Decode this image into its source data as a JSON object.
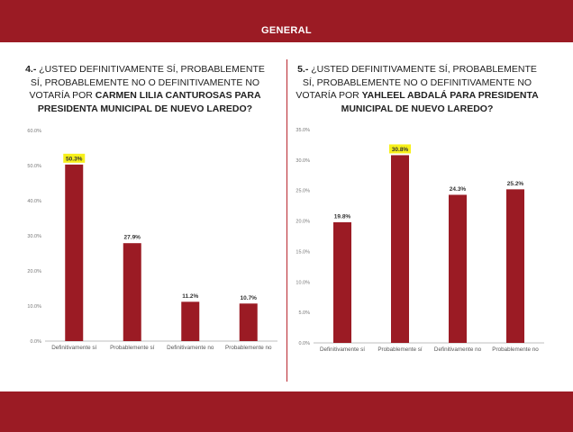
{
  "header": {
    "title": "GENERAL"
  },
  "questions": [
    {
      "num": "4.-",
      "text_pre": " ¿USTED DEFINITIVAMENTE SÍ, PROBABLEMENTE SÍ, PROBABLEMENTE NO O DEFINITIVAMENTE NO VOTARÍA POR ",
      "bold": "CARMEN LILIA CANTUROSAS PARA PRESIDENTA MUNICIPAL DE NUEVO LAREDO?"
    },
    {
      "num": "5.-",
      "text_pre": " ¿USTED DEFINITIVAMENTE SÍ, PROBABLEMENTE SÍ, PROBABLEMENTE NO O DEFINITIVAMENTE NO VOTARÍA POR ",
      "bold": "YAHLEEL ABDALÁ PARA PRESIDENTA MUNICIPAL DE NUEVO LAREDO?"
    }
  ],
  "colors": {
    "bar": "#9b1b24",
    "highlight": "#f7f01a"
  },
  "chart_data": [
    {
      "type": "bar",
      "categories": [
        "Definitivamente sí",
        "Probablemente sí",
        "Definitivamente no",
        "Probablemente no"
      ],
      "values": [
        50.3,
        27.9,
        11.2,
        10.7
      ],
      "labels": [
        "50.3%",
        "27.9%",
        "11.2%",
        "10.7%"
      ],
      "highlight_index": 0,
      "ylim": [
        0,
        60
      ],
      "yticks": [
        "0.0%",
        "10.0%",
        "20.0%",
        "30.0%",
        "40.0%",
        "50.0%",
        "60.0%"
      ],
      "grid": false
    },
    {
      "type": "bar",
      "categories": [
        "Definitivamente sí",
        "Probablemente sí",
        "Definitivamente no",
        "Probablemente no"
      ],
      "values": [
        19.8,
        30.8,
        24.3,
        25.2
      ],
      "labels": [
        "19.8%",
        "30.8%",
        "24.3%",
        "25.2%"
      ],
      "highlight_index": 1,
      "ylim": [
        0,
        35
      ],
      "yticks": [
        "0.0%",
        "5.0%",
        "10.0%",
        "15.0%",
        "20.0%",
        "25.0%",
        "30.0%",
        "35.0%"
      ],
      "grid": false
    }
  ]
}
